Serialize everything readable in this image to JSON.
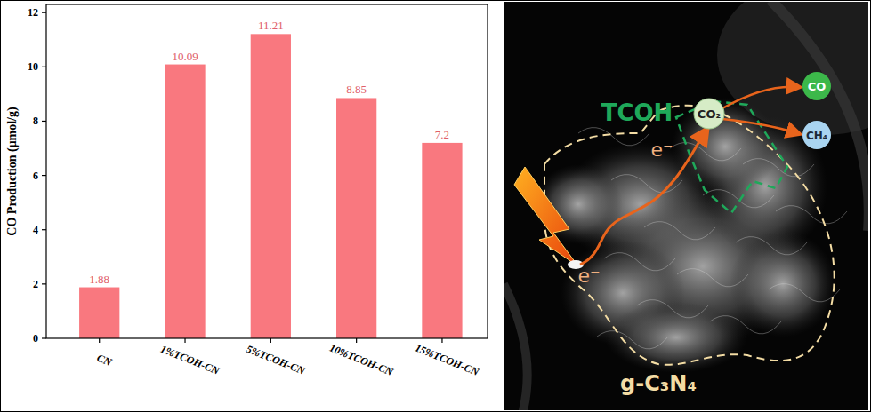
{
  "chart_data": {
    "type": "bar",
    "y_label": "CO Production (μmol/g)",
    "categories": [
      "CN",
      "1%TCOH-CN",
      "5%TCOH-CN",
      "10%TCOH-CN",
      "15%TCOH-CN"
    ],
    "values": [
      1.88,
      10.09,
      11.21,
      8.85,
      7.2
    ],
    "color": "#f9787f",
    "ylim": [
      0,
      12.3
    ],
    "yticks": [
      0,
      2,
      4,
      6,
      8,
      10,
      12
    ],
    "grid": false,
    "data_labels": true
  },
  "diagram": {
    "labels": {
      "catalyst": "TCOH",
      "reactant": "CO₂",
      "product_1": "CO",
      "product_2": "CH₄",
      "support": "g-C₃N₄",
      "electron_1": "e⁻",
      "electron_2": "e⁻"
    }
  }
}
